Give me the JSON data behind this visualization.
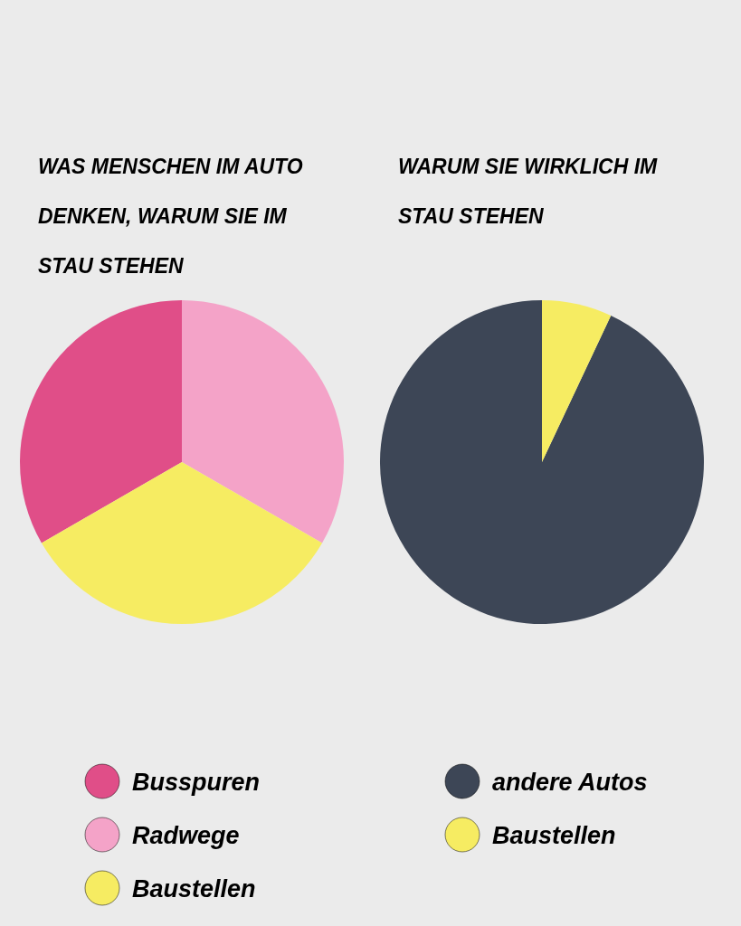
{
  "chart_data": [
    {
      "type": "pie",
      "title": "WAS MENSCHEN IM AUTO DENKEN, WARUM SIE IM STAU STEHEN",
      "categories": [
        "Busspuren",
        "Radwege",
        "Baustellen"
      ],
      "values": [
        33.33,
        33.33,
        33.34
      ],
      "colors": [
        "#e04e88",
        "#f4a3c8",
        "#f6ec62"
      ],
      "legend": "bottom"
    },
    {
      "type": "pie",
      "title": "WARUM SIE WIRKLICH IM STAU STEHEN",
      "categories": [
        "andere Autos",
        "Baustellen"
      ],
      "values": [
        93,
        7
      ],
      "colors": [
        "#3d4656",
        "#f6ec62"
      ],
      "legend": "bottom"
    }
  ]
}
